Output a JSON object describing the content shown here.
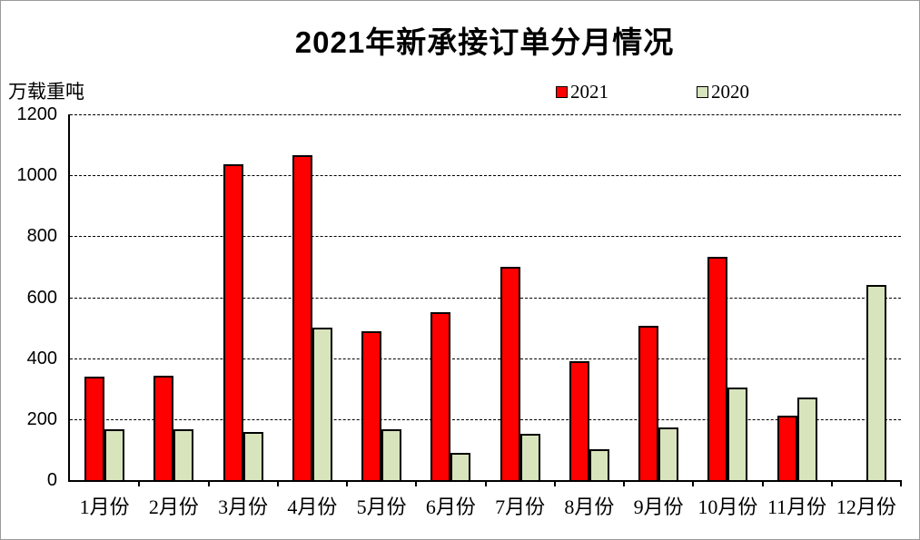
{
  "title": "2021年新承接订单分月情况",
  "y_axis_unit": "万载重吨",
  "legend": [
    {
      "label": "2021",
      "color": "#FF0000"
    },
    {
      "label": "2020",
      "color": "#D8E4BC"
    }
  ],
  "chart_data": {
    "type": "bar",
    "title": "2021年新承接订单分月情况",
    "xlabel": "",
    "ylabel": "万载重吨",
    "categories": [
      "1月份",
      "2月份",
      "3月份",
      "4月份",
      "5月份",
      "6月份",
      "7月份",
      "8月份",
      "9月份",
      "10月份",
      "11月份",
      "12月份"
    ],
    "series": [
      {
        "name": "2021",
        "color": "#FF0000",
        "values": [
          340,
          342,
          1036,
          1066,
          488,
          550,
          700,
          390,
          506,
          732,
          213,
          0
        ]
      },
      {
        "name": "2020",
        "color": "#D8E4BC",
        "values": [
          167,
          167,
          157,
          500,
          168,
          90,
          151,
          100,
          172,
          304,
          270,
          640
        ]
      }
    ],
    "ylim": [
      0,
      1200
    ],
    "y_ticks": [
      0,
      200,
      400,
      600,
      800,
      1000,
      1200
    ],
    "grid": "horizontal-dashed",
    "legend_position": "top-center",
    "bar_border_color": "#000000"
  }
}
